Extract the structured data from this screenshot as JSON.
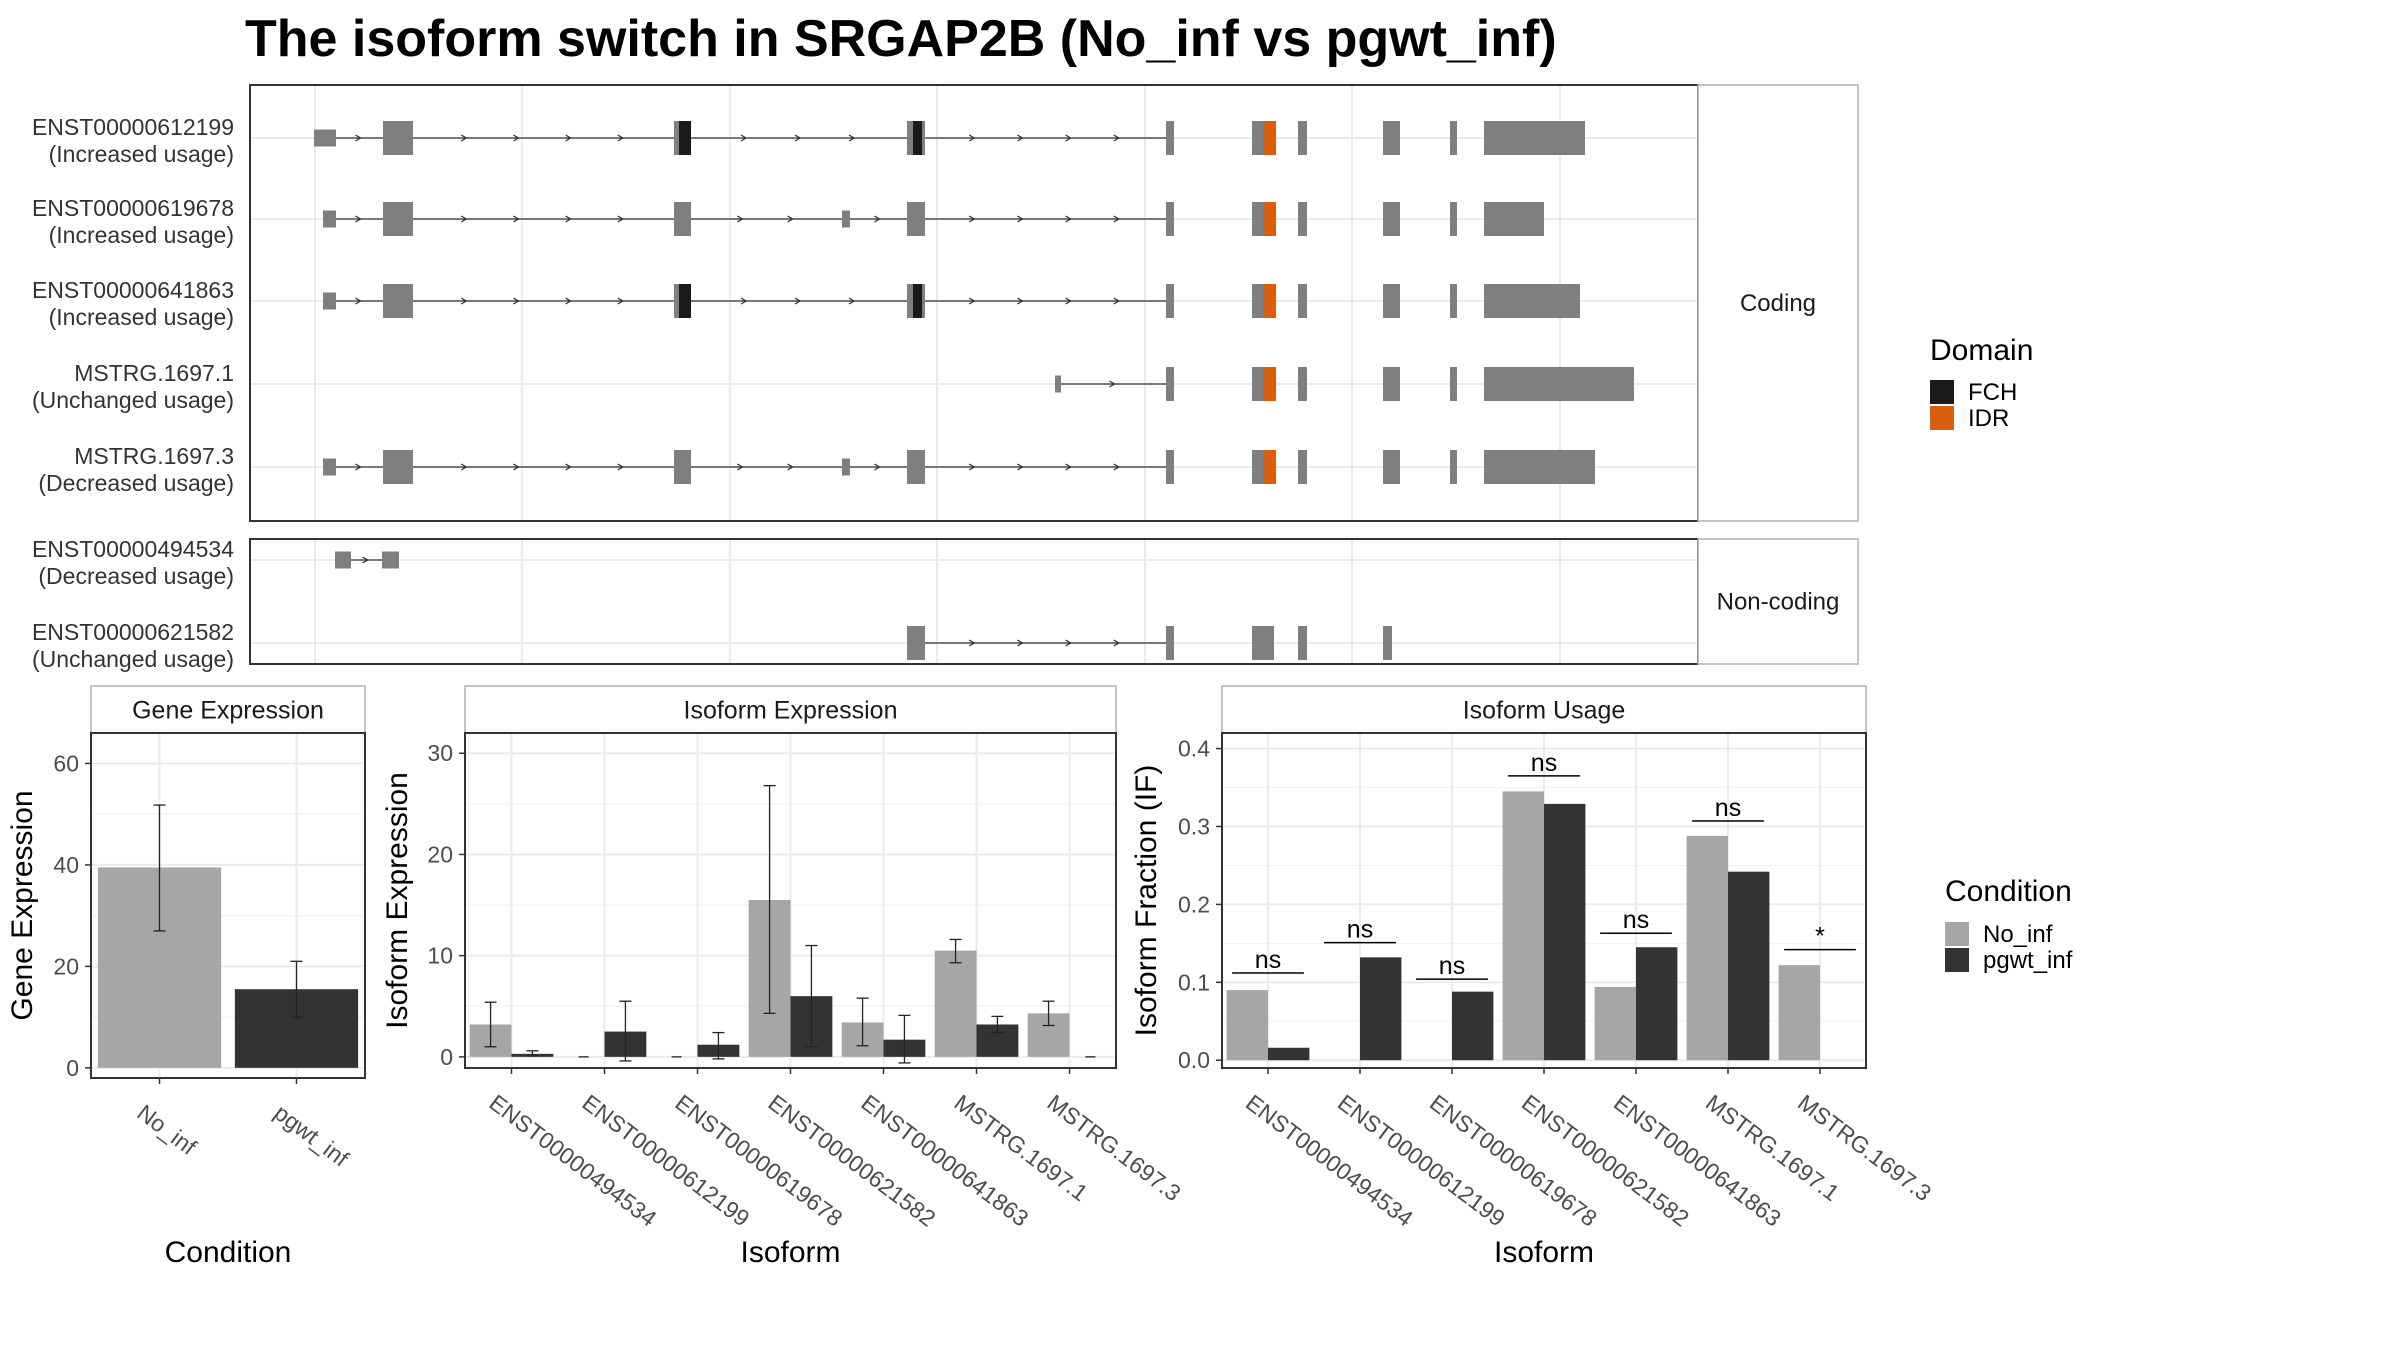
{
  "title": "The isoform switch in SRGAP2B (No_inf vs pgwt_inf)",
  "colors": {
    "exon": "#7f7f7f",
    "fch": "#1a1a1a",
    "idr": "#d95f0e",
    "no_inf": "#a6a6a6",
    "pgwt_inf": "#333333",
    "panel_border": "#333333",
    "grid": "#ebebeb",
    "strip_border": "#b0b0b0"
  },
  "transcripts": {
    "groups": [
      {
        "label": "Coding",
        "isoforms": [
          {
            "id": "ENST00000612199",
            "usage": "(Increased usage)"
          },
          {
            "id": "ENST00000619678",
            "usage": "(Increased usage)"
          },
          {
            "id": "ENST00000641863",
            "usage": "(Increased usage)"
          },
          {
            "id": "MSTRG.1697.1",
            "usage": "(Unchanged usage)"
          },
          {
            "id": "MSTRG.1697.3",
            "usage": "(Decreased usage)"
          }
        ]
      },
      {
        "label": "Non-coding",
        "isoforms": [
          {
            "id": "ENST00000494534",
            "usage": "(Decreased usage)"
          },
          {
            "id": "ENST00000621582",
            "usage": "(Unchanged usage)"
          }
        ]
      }
    ],
    "legend": {
      "title": "Domain",
      "items": [
        {
          "label": "FCH",
          "color": "#1a1a1a"
        },
        {
          "label": "IDR",
          "color": "#d95f0e"
        }
      ]
    }
  },
  "chart_data": [
    {
      "type": "bar",
      "panel_title": "Gene Expression",
      "xlabel": "Condition",
      "ylabel": "Gene Expression",
      "categories": [
        "No_inf",
        "pgwt_inf"
      ],
      "values": [
        39.5,
        15.5
      ],
      "errors": [
        [
          27,
          51.8
        ],
        [
          10,
          21
        ]
      ],
      "yticks": [
        0,
        20,
        40,
        60
      ],
      "ylim": [
        -2,
        66
      ]
    },
    {
      "type": "bar",
      "panel_title": "Isoform Expression",
      "xlabel": "Isoform",
      "ylabel": "Isoform Expression",
      "categories": [
        "ENST00000494534",
        "ENST00000612199",
        "ENST00000619678",
        "ENST00000621582",
        "ENST00000641863",
        "MSTRG.1697.1",
        "MSTRG.1697.3"
      ],
      "series": [
        {
          "name": "No_inf",
          "values": [
            3.2,
            0,
            0,
            15.5,
            3.4,
            10.5,
            4.3
          ],
          "errors": [
            [
              1,
              5.4
            ],
            null,
            null,
            [
              4.3,
              26.8
            ],
            [
              1.1,
              5.8
            ],
            [
              9.3,
              11.6
            ],
            [
              3.1,
              5.5
            ]
          ]
        },
        {
          "name": "pgwt_inf",
          "values": [
            0.3,
            2.5,
            1.2,
            6,
            1.7,
            3.2,
            0
          ],
          "errors": [
            [
              0.1,
              0.6
            ],
            [
              -0.4,
              5.5
            ],
            [
              -0.2,
              2.4
            ],
            [
              1,
              11
            ],
            [
              -0.6,
              4.1
            ],
            [
              2.4,
              4
            ],
            null
          ]
        }
      ],
      "yticks": [
        0,
        10,
        20,
        30
      ],
      "ylim": [
        -1.1,
        32
      ]
    },
    {
      "type": "bar",
      "panel_title": "Isoform Usage",
      "xlabel": "Isoform",
      "ylabel": "Isoform Fraction (IF)",
      "categories": [
        "ENST00000494534",
        "ENST00000612199",
        "ENST00000619678",
        "ENST00000621582",
        "ENST00000641863",
        "MSTRG.1697.1",
        "MSTRG.1697.3"
      ],
      "series": [
        {
          "name": "No_inf",
          "values": [
            0.09,
            0,
            0,
            0.345,
            0.094,
            0.288,
            0.122
          ]
        },
        {
          "name": "pgwt_inf",
          "values": [
            0.016,
            0.132,
            0.088,
            0.329,
            0.145,
            0.242,
            0
          ]
        }
      ],
      "significance": [
        "ns",
        "ns",
        "ns",
        "ns",
        "ns",
        "ns",
        "*"
      ],
      "sig_line": [
        0.112,
        0.151,
        0.104,
        0.365,
        0.163,
        0.307,
        0.142
      ],
      "yticks": [
        0.0,
        0.1,
        0.2,
        0.3,
        0.4
      ],
      "ylim": [
        -0.01,
        0.42
      ]
    }
  ],
  "legend": {
    "title": "Condition",
    "items": [
      {
        "label": "No_inf",
        "color": "#a6a6a6"
      },
      {
        "label": "pgwt_inf",
        "color": "#333333"
      }
    ]
  }
}
